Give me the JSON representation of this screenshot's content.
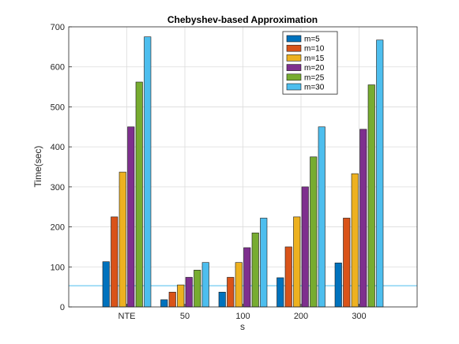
{
  "chart_data": {
    "type": "bar",
    "title": "Chebyshev-based Approximation",
    "xlabel": "s",
    "ylabel": "Time(sec)",
    "categories": [
      "NTE",
      "50",
      "100",
      "200",
      "300"
    ],
    "ylim": [
      0,
      700
    ],
    "yticks": [
      0,
      100,
      200,
      300,
      400,
      500,
      600,
      700
    ],
    "grid": true,
    "legend_position": "top-right",
    "series": [
      {
        "name": "m=5",
        "color": "#0072BD",
        "values": [
          113,
          18,
          37,
          73,
          110
        ]
      },
      {
        "name": "m=10",
        "color": "#D95319",
        "values": [
          225,
          37,
          74,
          150,
          222
        ]
      },
      {
        "name": "m=15",
        "color": "#EDB120",
        "values": [
          337,
          55,
          111,
          225,
          333
        ]
      },
      {
        "name": "m=20",
        "color": "#7E2F8E",
        "values": [
          450,
          74,
          148,
          300,
          444
        ]
      },
      {
        "name": "m=25",
        "color": "#77AC30",
        "values": [
          562,
          92,
          185,
          375,
          555
        ]
      },
      {
        "name": "m=30",
        "color": "#4DBEEE",
        "values": [
          675,
          111,
          222,
          450,
          667
        ]
      }
    ],
    "reference_line": {
      "y": 53,
      "color": "#4DBEEE"
    }
  }
}
